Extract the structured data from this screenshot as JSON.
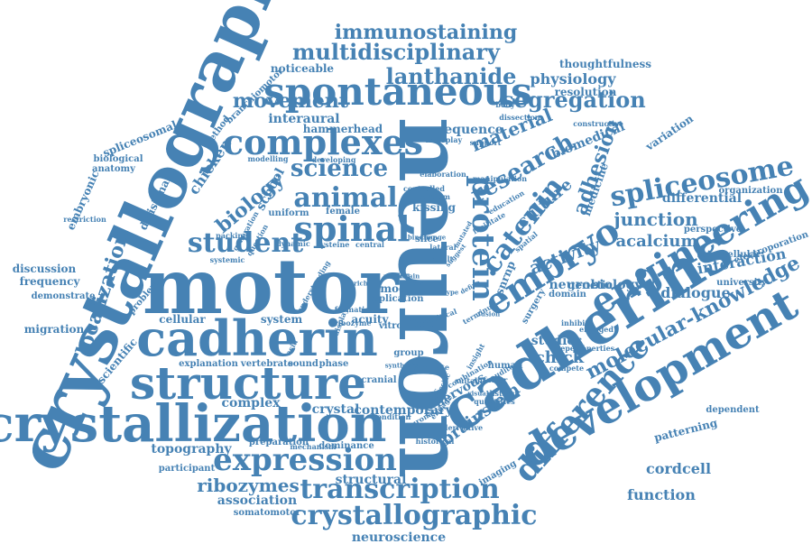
{
  "style": {
    "word_color": "#4682b4",
    "background": "#ffffff"
  },
  "words": [
    {
      "text": "neuron",
      "angle": 90
    },
    {
      "text": "motor",
      "angle": 0
    },
    {
      "text": "crystallography",
      "angle": -66
    },
    {
      "text": "cadherins",
      "angle": -32
    },
    {
      "text": "crystallization",
      "angle": 0
    },
    {
      "text": "cadherin",
      "angle": 0
    },
    {
      "text": "structure",
      "angle": 0
    },
    {
      "text": "development",
      "angle": -30
    },
    {
      "text": "engineering",
      "angle": -30
    },
    {
      "text": "spontaneous",
      "angle": 0
    },
    {
      "text": "complexes",
      "angle": 0
    },
    {
      "text": "spinal",
      "angle": 0
    },
    {
      "text": "embryo",
      "angle": -32
    },
    {
      "text": "catenin",
      "angle": -52
    },
    {
      "text": "protein",
      "angle": 90
    },
    {
      "text": "difference",
      "angle": -48
    },
    {
      "text": "spliceosome",
      "angle": -10
    },
    {
      "text": "research",
      "angle": -30
    },
    {
      "text": "crystallographic",
      "angle": 0
    },
    {
      "text": "expression",
      "angle": 0
    },
    {
      "text": "transcription",
      "angle": 0
    },
    {
      "text": "animal",
      "angle": 0
    },
    {
      "text": "student",
      "angle": 0
    },
    {
      "text": "segregation",
      "angle": 0
    },
    {
      "text": "lanthanide",
      "angle": 0
    },
    {
      "text": "science",
      "angle": 0
    },
    {
      "text": "multidisciplinary",
      "angle": 0
    },
    {
      "text": "immunostaining",
      "angle": 0
    },
    {
      "text": "molecular-knowledge",
      "angle": -28
    },
    {
      "text": "adhesion",
      "angle": -70
    },
    {
      "text": "movement",
      "angle": 0
    },
    {
      "text": "biology",
      "angle": -40
    },
    {
      "text": "localization",
      "angle": -72
    },
    {
      "text": "activity",
      "angle": -20
    },
    {
      "text": "junction",
      "angle": 0
    },
    {
      "text": "culture",
      "angle": -40
    },
    {
      "text": "material",
      "angle": -22
    },
    {
      "text": "acalcium",
      "angle": 0
    },
    {
      "text": "ribozymes",
      "angle": 0
    },
    {
      "text": "function",
      "angle": 0
    },
    {
      "text": "cordcell",
      "angle": 0
    },
    {
      "text": "interaction",
      "angle": -10
    },
    {
      "text": "physiology",
      "angle": 0
    },
    {
      "text": "dialogue",
      "angle": 0
    },
    {
      "text": "chick",
      "angle": 0
    },
    {
      "text": "chicken",
      "angle": -56
    },
    {
      "text": "brainstem",
      "angle": -36
    },
    {
      "text": "topography",
      "angle": 0
    },
    {
      "text": "association",
      "angle": 0
    },
    {
      "text": "neurobiology",
      "angle": 0
    },
    {
      "text": "contemporary",
      "angle": 0
    },
    {
      "text": "biomedical",
      "angle": -22
    },
    {
      "text": "snrnp",
      "angle": -68
    },
    {
      "text": "nervous",
      "angle": -30
    },
    {
      "text": "medicine",
      "angle": -70
    },
    {
      "text": "studies",
      "angle": 0
    },
    {
      "text": "school",
      "angle": -62
    },
    {
      "text": "neuroscience",
      "angle": 0
    },
    {
      "text": "complex",
      "angle": 0
    },
    {
      "text": "crystal",
      "angle": 0
    },
    {
      "text": "scientific",
      "angle": -50
    },
    {
      "text": "embryonic",
      "angle": -66
    },
    {
      "text": "divisional",
      "angle": -64
    },
    {
      "text": "structural",
      "angle": 0
    },
    {
      "text": "interaural",
      "angle": 0
    },
    {
      "text": "sequence",
      "angle": 0
    },
    {
      "text": "differential",
      "angle": 0
    },
    {
      "text": "patterning",
      "angle": -14
    },
    {
      "text": "resolution",
      "angle": 0
    },
    {
      "text": "migration",
      "angle": 0
    },
    {
      "text": "discussion",
      "angle": 0
    },
    {
      "text": "frequency",
      "angle": 0
    },
    {
      "text": "cellular",
      "angle": 0
    },
    {
      "text": "system",
      "angle": 0
    },
    {
      "text": "acuity",
      "angle": 0
    },
    {
      "text": "model",
      "angle": 0
    },
    {
      "text": "genetic",
      "angle": 0
    },
    {
      "text": "thoughtfulness",
      "angle": 0
    },
    {
      "text": "noticeable",
      "angle": 0
    },
    {
      "text": "hammerhead",
      "angle": 0
    },
    {
      "text": "variation",
      "angle": -34
    },
    {
      "text": "dependent",
      "angle": 0
    },
    {
      "text": "university",
      "angle": 0
    },
    {
      "text": "spliceosomal",
      "angle": -22
    },
    {
      "text": "biological",
      "angle": 0
    },
    {
      "text": "anatomy",
      "angle": 0
    },
    {
      "text": "method",
      "angle": -54
    },
    {
      "text": "branchiomotor",
      "angle": -44
    },
    {
      "text": "kissing",
      "angle": 0
    },
    {
      "text": "uniform",
      "angle": 0
    },
    {
      "text": "female",
      "angle": 0
    },
    {
      "text": "explanation",
      "angle": 0
    },
    {
      "text": "vertebrate",
      "angle": 0
    },
    {
      "text": "sound",
      "angle": 0
    },
    {
      "text": "phase",
      "angle": 0
    },
    {
      "text": "cranial",
      "angle": 0
    },
    {
      "text": "group",
      "angle": 0
    },
    {
      "text": "slice",
      "angle": 0
    },
    {
      "text": "human",
      "angle": 0
    },
    {
      "text": "domain",
      "angle": 0
    },
    {
      "text": "surgery",
      "angle": -60
    },
    {
      "text": "organization",
      "angle": 0
    },
    {
      "text": "electroporation",
      "angle": -20
    },
    {
      "text": "perspective",
      "angle": 0
    },
    {
      "text": "intracellular",
      "angle": 0
    },
    {
      "text": "problem",
      "angle": -50
    },
    {
      "text": "demonstrate",
      "angle": 0
    },
    {
      "text": "preparation",
      "angle": 0
    },
    {
      "text": "dominance",
      "angle": 0
    },
    {
      "text": "participant",
      "angle": 0
    },
    {
      "text": "somatomotor",
      "angle": 0
    },
    {
      "text": "imaging",
      "angle": -30
    },
    {
      "text": "condition",
      "angle": 0
    },
    {
      "text": "historical",
      "angle": 0
    },
    {
      "text": "mechanism",
      "angle": 0
    },
    {
      "text": "elaboration",
      "angle": 0
    },
    {
      "text": "interplay",
      "angle": 0
    },
    {
      "text": "modelling",
      "angle": 0
    },
    {
      "text": "developing",
      "angle": 0
    },
    {
      "text": "controlled",
      "angle": 0
    },
    {
      "text": "terbium",
      "angle": 0
    },
    {
      "text": "packing",
      "angle": 0
    },
    {
      "text": "generation",
      "angle": -60
    },
    {
      "text": "question",
      "angle": -60
    },
    {
      "text": "systemic",
      "angle": 0
    },
    {
      "text": "dynamic",
      "angle": 0
    },
    {
      "text": "cysteine",
      "angle": 0
    },
    {
      "text": "central",
      "angle": 0
    },
    {
      "text": "lateral",
      "angle": 0
    },
    {
      "text": "result",
      "angle": 0
    },
    {
      "text": "body",
      "angle": 0
    },
    {
      "text": "support",
      "angle": 0
    },
    {
      "text": "dissection",
      "angle": 0
    },
    {
      "text": "constructive",
      "angle": 0
    },
    {
      "text": "manipulation",
      "angle": 0
    },
    {
      "text": "education",
      "angle": -30
    },
    {
      "text": "terminus",
      "angle": -30
    },
    {
      "text": "inhibit",
      "angle": 0
    },
    {
      "text": "depend",
      "angle": 0
    },
    {
      "text": "compete",
      "angle": 0
    },
    {
      "text": "engaged",
      "angle": 0
    },
    {
      "text": "properties",
      "angle": 0
    },
    {
      "text": "combination",
      "angle": -30
    },
    {
      "text": "suitable",
      "angle": 0
    },
    {
      "text": "distinct",
      "angle": 0
    },
    {
      "text": "quantities",
      "angle": 0
    },
    {
      "text": "template",
      "angle": 0
    },
    {
      "text": "nucleic",
      "angle": -70
    },
    {
      "text": "engage",
      "angle": -50
    },
    {
      "text": "neuronal",
      "angle": -30
    },
    {
      "text": "derivative",
      "angle": 0
    },
    {
      "text": "application",
      "angle": 0
    },
    {
      "text": "core",
      "angle": 0
    },
    {
      "text": "vitro",
      "angle": 0
    },
    {
      "text": "time",
      "angle": 0
    },
    {
      "text": "male",
      "angle": 0
    },
    {
      "text": "acid",
      "angle": -60
    },
    {
      "text": "ribozyme",
      "angle": 0
    },
    {
      "text": "formation",
      "angle": 0
    },
    {
      "text": "restriction",
      "angle": 0
    },
    {
      "text": "understanding",
      "angle": -60
    },
    {
      "text": "display",
      "angle": -70
    },
    {
      "text": "critical",
      "angle": -20
    },
    {
      "text": "insight",
      "angle": -60
    },
    {
      "text": "spatial",
      "angle": -40
    },
    {
      "text": "facilitate",
      "angle": -30
    },
    {
      "text": "auditory",
      "angle": -30
    },
    {
      "text": "factor",
      "angle": 0
    },
    {
      "text": "synthesis",
      "angle": 0
    },
    {
      "text": "binding",
      "angle": 0
    },
    {
      "text": "change",
      "angle": 0
    },
    {
      "text": "present",
      "angle": 0
    },
    {
      "text": "type",
      "angle": 0
    },
    {
      "text": "position",
      "angle": 0
    },
    {
      "text": "fusion",
      "angle": 0
    },
    {
      "text": "define",
      "angle": -30
    },
    {
      "text": "mutated",
      "angle": -60
    },
    {
      "text": "suggest",
      "angle": -50
    },
    {
      "text": "rich",
      "angle": 0
    },
    {
      "text": "sustain",
      "angle": 0
    },
    {
      "text": "visual",
      "angle": 0
    },
    {
      "text": "specific",
      "angle": -60
    },
    {
      "text": "gene",
      "angle": 0
    },
    {
      "text": "analysis",
      "angle": 0
    }
  ]
}
